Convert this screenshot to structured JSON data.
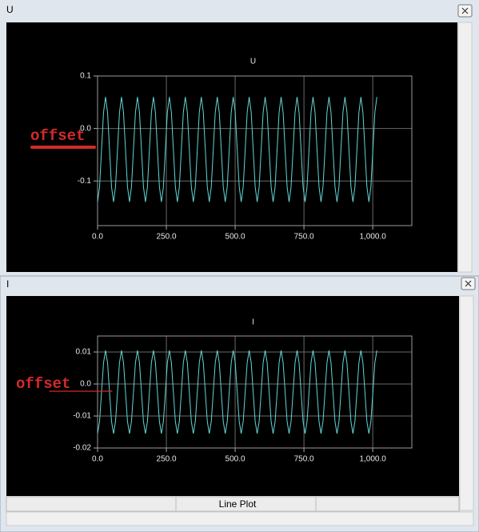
{
  "windows": [
    {
      "title": "U"
    },
    {
      "title": "I",
      "status": "Line Plot"
    }
  ],
  "chart_data": [
    {
      "type": "line",
      "title": "U",
      "annotation": "offset",
      "color": "#62d6d6",
      "grid": true,
      "x": [
        0,
        7.25,
        14.5,
        21.75,
        29,
        36.25,
        43.5,
        50.75,
        58,
        65.25,
        72.5,
        79.75,
        87,
        94.25,
        101.5,
        108.75,
        116,
        123.25,
        130.5,
        137.75,
        145,
        152.25,
        159.5,
        166.75,
        174,
        181.25,
        188.5,
        195.75,
        203,
        210.25,
        217.5,
        224.75,
        232,
        239.25,
        246.5,
        253.75,
        261,
        268.25,
        275.5,
        282.75,
        290,
        297.25,
        304.5,
        311.75,
        319,
        326.25,
        333.5,
        340.75,
        348,
        355.25,
        362.5,
        369.75,
        377,
        384.25,
        391.5,
        398.75,
        406,
        413.25,
        420.5,
        427.75,
        435,
        442.25,
        449.5,
        456.75,
        464,
        471.25,
        478.5,
        485.75,
        493,
        500.25,
        507.5,
        514.75,
        522,
        529.25,
        536.5,
        543.75,
        551,
        558.25,
        565.5,
        572.75,
        580,
        587.25,
        594.5,
        601.75,
        609,
        616.25,
        623.5,
        630.75,
        638,
        645.25,
        652.5,
        659.75,
        667,
        674.25,
        681.5,
        688.75,
        696,
        703.25,
        710.5,
        717.75,
        725,
        732.25,
        739.5,
        746.75,
        754,
        761.25,
        768.5,
        775.75,
        783,
        790.25,
        797.5,
        804.75,
        812,
        819.25,
        826.5,
        833.75,
        841,
        848.25,
        855.5,
        862.75,
        870,
        877.25,
        884.5,
        891.75,
        899,
        906.25,
        913.5,
        920.75,
        928,
        935.25,
        942.5,
        949.75,
        957,
        964.25,
        971.5,
        978.75,
        986,
        993.25,
        1000.5,
        1007.75,
        1015
      ],
      "values": [
        -0.14,
        -0.111,
        -0.04,
        0.031,
        0.06,
        0.031,
        -0.04,
        -0.111,
        -0.14,
        -0.111,
        -0.04,
        0.031,
        0.06,
        0.031,
        -0.04,
        -0.111,
        -0.14,
        -0.111,
        -0.04,
        0.031,
        0.06,
        0.031,
        -0.04,
        -0.111,
        -0.14,
        -0.111,
        -0.04,
        0.031,
        0.06,
        0.031,
        -0.04,
        -0.111,
        -0.14,
        -0.111,
        -0.04,
        0.031,
        0.06,
        0.031,
        -0.04,
        -0.111,
        -0.14,
        -0.111,
        -0.04,
        0.031,
        0.06,
        0.031,
        -0.04,
        -0.111,
        -0.14,
        -0.111,
        -0.04,
        0.031,
        0.06,
        0.031,
        -0.04,
        -0.111,
        -0.14,
        -0.111,
        -0.04,
        0.031,
        0.06,
        0.031,
        -0.04,
        -0.111,
        -0.14,
        -0.111,
        -0.04,
        0.031,
        0.06,
        0.031,
        -0.04,
        -0.111,
        -0.14,
        -0.111,
        -0.04,
        0.031,
        0.06,
        0.031,
        -0.04,
        -0.111,
        -0.14,
        -0.111,
        -0.04,
        0.031,
        0.06,
        0.031,
        -0.04,
        -0.111,
        -0.14,
        -0.111,
        -0.04,
        0.031,
        0.06,
        0.031,
        -0.04,
        -0.111,
        -0.14,
        -0.111,
        -0.04,
        0.031,
        0.06,
        0.031,
        -0.04,
        -0.111,
        -0.14,
        -0.111,
        -0.04,
        0.031,
        0.06,
        0.031,
        -0.04,
        -0.111,
        -0.14,
        -0.111,
        -0.04,
        0.031,
        0.06,
        0.031,
        -0.04,
        -0.111,
        -0.14,
        -0.111,
        -0.04,
        0.031,
        0.06,
        0.031,
        -0.04,
        -0.111,
        -0.14,
        -0.111,
        -0.04,
        0.031,
        0.06,
        0.031,
        -0.04,
        -0.111,
        -0.14,
        -0.111,
        -0.04,
        0.031,
        0.06
      ],
      "xlim": [
        0,
        1142
      ],
      "xticks": [
        {
          "value": 0,
          "label": "0.0"
        },
        {
          "value": 250,
          "label": "250.0"
        },
        {
          "value": 500,
          "label": "500.0"
        },
        {
          "value": 750,
          "label": "750.0"
        },
        {
          "value": 1000,
          "label": "1,000.0"
        }
      ],
      "ylim": [
        -0.185,
        0.1
      ],
      "yticks": [
        0.1,
        {
          "value": 0,
          "label": "0.0"
        },
        -0.1
      ]
    },
    {
      "type": "line",
      "title": "I",
      "annotation": "offset",
      "color": "#62d6d6",
      "grid": true,
      "x": [
        0,
        7.25,
        14.5,
        21.75,
        29,
        36.25,
        43.5,
        50.75,
        58,
        65.25,
        72.5,
        79.75,
        87,
        94.25,
        101.5,
        108.75,
        116,
        123.25,
        130.5,
        137.75,
        145,
        152.25,
        159.5,
        166.75,
        174,
        181.25,
        188.5,
        195.75,
        203,
        210.25,
        217.5,
        224.75,
        232,
        239.25,
        246.5,
        253.75,
        261,
        268.25,
        275.5,
        282.75,
        290,
        297.25,
        304.5,
        311.75,
        319,
        326.25,
        333.5,
        340.75,
        348,
        355.25,
        362.5,
        369.75,
        377,
        384.25,
        391.5,
        398.75,
        406,
        413.25,
        420.5,
        427.75,
        435,
        442.25,
        449.5,
        456.75,
        464,
        471.25,
        478.5,
        485.75,
        493,
        500.25,
        507.5,
        514.75,
        522,
        529.25,
        536.5,
        543.75,
        551,
        558.25,
        565.5,
        572.75,
        580,
        587.25,
        594.5,
        601.75,
        609,
        616.25,
        623.5,
        630.75,
        638,
        645.25,
        652.5,
        659.75,
        667,
        674.25,
        681.5,
        688.75,
        696,
        703.25,
        710.5,
        717.75,
        725,
        732.25,
        739.5,
        746.75,
        754,
        761.25,
        768.5,
        775.75,
        783,
        790.25,
        797.5,
        804.75,
        812,
        819.25,
        826.5,
        833.75,
        841,
        848.25,
        855.5,
        862.75,
        870,
        877.25,
        884.5,
        891.75,
        899,
        906.25,
        913.5,
        920.75,
        928,
        935.25,
        942.5,
        949.75,
        957,
        964.25,
        971.5,
        978.75,
        986,
        993.25,
        1000.5,
        1007.75,
        1015
      ],
      "values": [
        -0.0155,
        -0.0117,
        -0.0025,
        0.0067,
        0.0105,
        0.0067,
        -0.0025,
        -0.0117,
        -0.0155,
        -0.0117,
        -0.0025,
        0.0067,
        0.0105,
        0.0067,
        -0.0025,
        -0.0117,
        -0.0155,
        -0.0117,
        -0.0025,
        0.0067,
        0.0105,
        0.0067,
        -0.0025,
        -0.0117,
        -0.0155,
        -0.0117,
        -0.0025,
        0.0067,
        0.0105,
        0.0067,
        -0.0025,
        -0.0117,
        -0.0155,
        -0.0117,
        -0.0025,
        0.0067,
        0.0105,
        0.0067,
        -0.0025,
        -0.0117,
        -0.0155,
        -0.0117,
        -0.0025,
        0.0067,
        0.0105,
        0.0067,
        -0.0025,
        -0.0117,
        -0.0155,
        -0.0117,
        -0.0025,
        0.0067,
        0.0105,
        0.0067,
        -0.0025,
        -0.0117,
        -0.0155,
        -0.0117,
        -0.0025,
        0.0067,
        0.0105,
        0.0067,
        -0.0025,
        -0.0117,
        -0.0155,
        -0.0117,
        -0.0025,
        0.0067,
        0.0105,
        0.0067,
        -0.0025,
        -0.0117,
        -0.0155,
        -0.0117,
        -0.0025,
        0.0067,
        0.0105,
        0.0067,
        -0.0025,
        -0.0117,
        -0.0155,
        -0.0117,
        -0.0025,
        0.0067,
        0.0105,
        0.0067,
        -0.0025,
        -0.0117,
        -0.0155,
        -0.0117,
        -0.0025,
        0.0067,
        0.0105,
        0.0067,
        -0.0025,
        -0.0117,
        -0.0155,
        -0.0117,
        -0.0025,
        0.0067,
        0.0105,
        0.0067,
        -0.0025,
        -0.0117,
        -0.0155,
        -0.0117,
        -0.0025,
        0.0067,
        0.0105,
        0.0067,
        -0.0025,
        -0.0117,
        -0.0155,
        -0.0117,
        -0.0025,
        0.0067,
        0.0105,
        0.0067,
        -0.0025,
        -0.0117,
        -0.0155,
        -0.0117,
        -0.0025,
        0.0067,
        0.0105,
        0.0067,
        -0.0025,
        -0.0117,
        -0.0155,
        -0.0117,
        -0.0025,
        0.0067,
        0.0105,
        0.0067,
        -0.0025,
        -0.0117,
        -0.0155,
        -0.0117,
        -0.0025,
        0.0067,
        0.0105
      ],
      "xlim": [
        0,
        1142
      ],
      "xticks": [
        {
          "value": 0,
          "label": "0.0"
        },
        {
          "value": 250,
          "label": "250.0"
        },
        {
          "value": 500,
          "label": "500.0"
        },
        {
          "value": 750,
          "label": "750.0"
        },
        {
          "value": 1000,
          "label": "1,000.0"
        }
      ],
      "ylim": [
        -0.02,
        0.015
      ],
      "yticks": [
        0.01,
        {
          "value": 0,
          "label": "0.0"
        },
        -0.01,
        -0.02
      ]
    }
  ]
}
